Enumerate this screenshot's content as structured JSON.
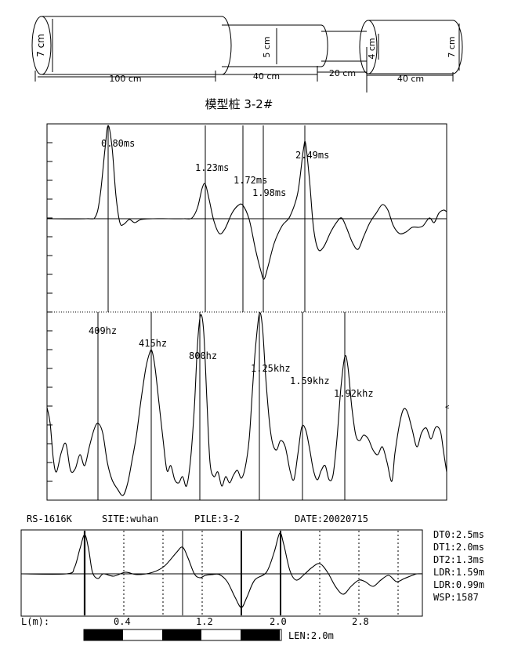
{
  "model": {
    "caption": "模型桩 3-2#",
    "dims": {
      "seg1_diam": "7 cm",
      "seg1_len": "100 cm",
      "seg2_diam": "5 cm",
      "seg2_len": "40 cm",
      "seg3_len": "20 cm",
      "seg4_diam": "4 cm",
      "seg5_diam": "7 cm",
      "seg5_len": "40 cm"
    }
  },
  "time_plot": {
    "peaks": [
      "0.80ms",
      "1.23ms",
      "1.72ms",
      "1.98ms",
      "2.49ms"
    ]
  },
  "freq_plot": {
    "peaks": [
      "409hz",
      "415hz",
      "800hz",
      "1.25khz",
      "1.59khz",
      "1.92khz"
    ]
  },
  "footer": {
    "device": "RS-1616K",
    "site": "SITE:wuhan",
    "pile": "PILE:3-2",
    "date": "DATE:20020715",
    "axis_label": "L(m):",
    "ticks": [
      "0.4",
      "1.2",
      "2.0",
      "2.8"
    ],
    "len": "LEN:2.0m",
    "params": [
      "DT0:2.5ms",
      "DT1:2.0ms",
      "DT2:1.3ms",
      "LDR:1.59m",
      "LDR:0.99m",
      "WSP:1587"
    ]
  }
}
